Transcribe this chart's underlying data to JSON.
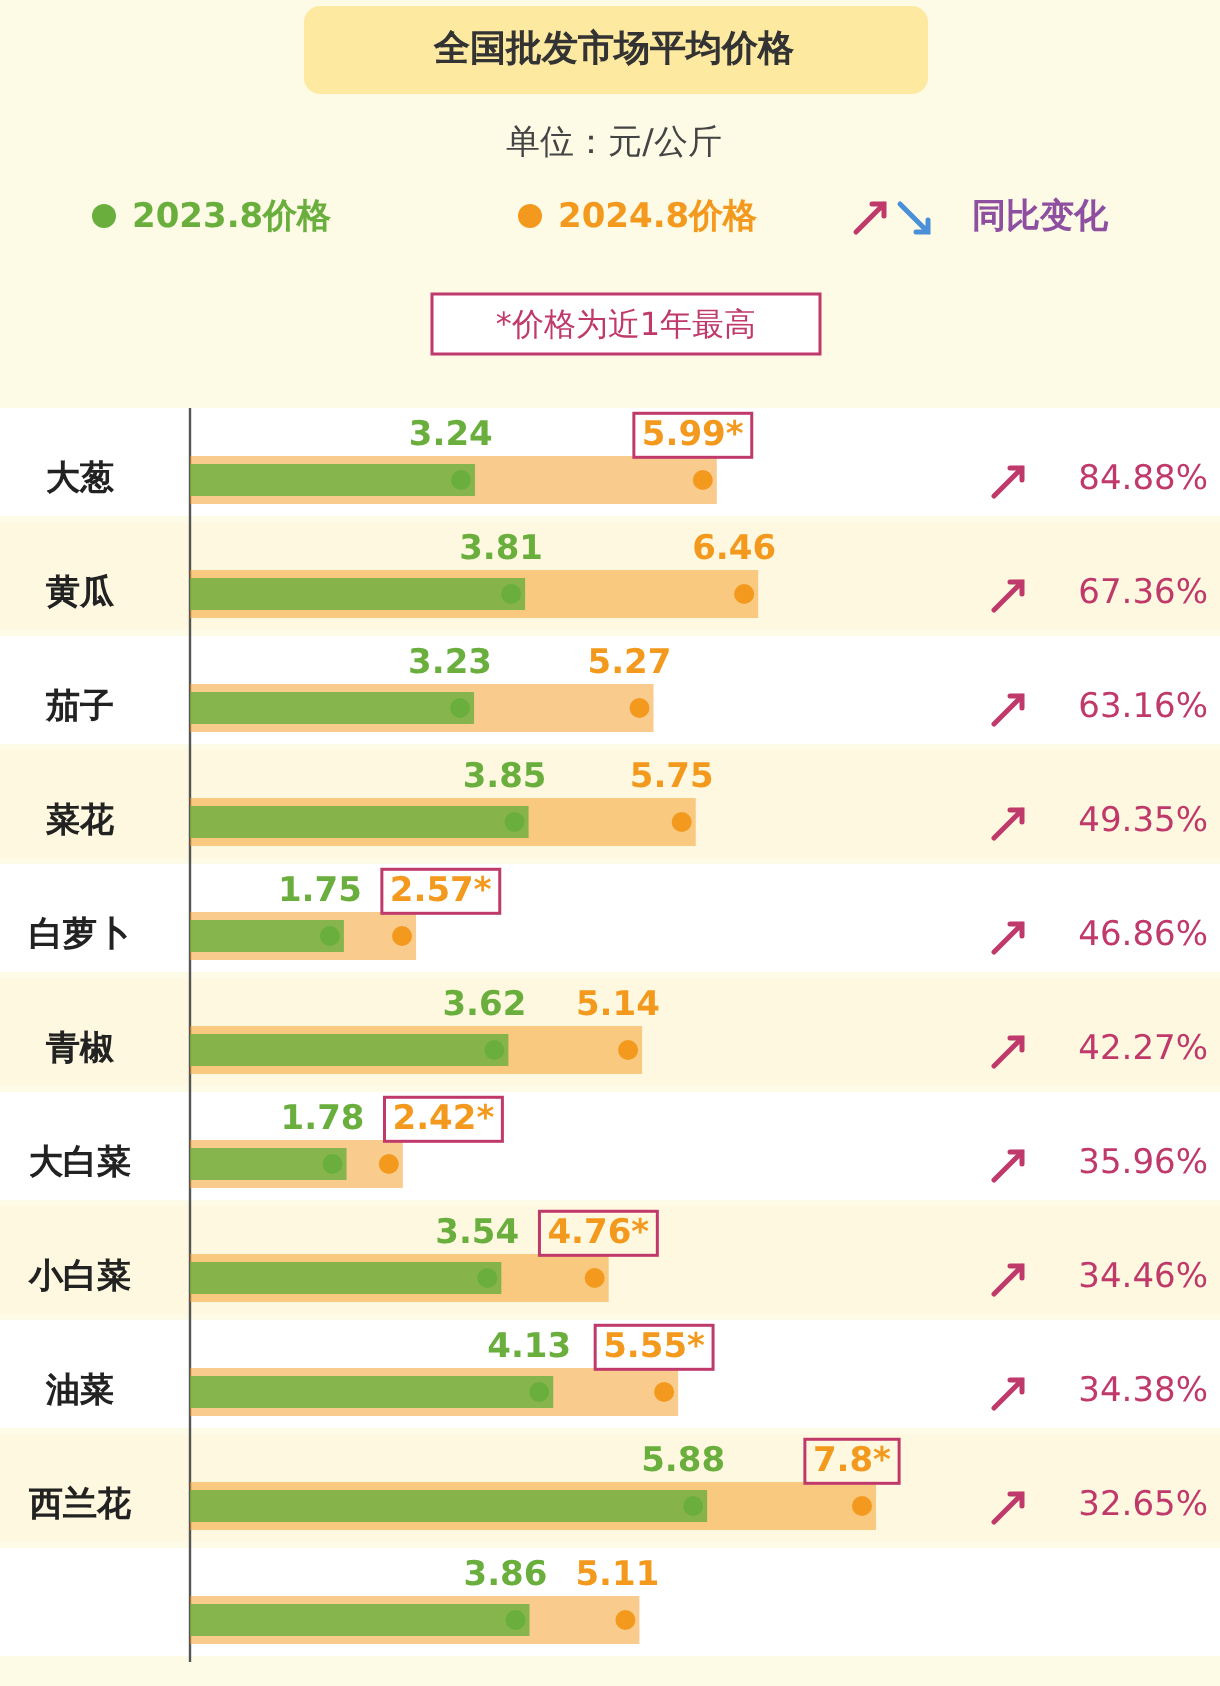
{
  "chart_data": {
    "type": "bar",
    "orientation": "horizontal",
    "title": "全国批发市场平均价格",
    "subtitle": "单位：元/公斤",
    "categories": [
      "大葱",
      "黄瓜",
      "茄子",
      "菜花",
      "白萝卜",
      "青椒",
      "大白菜",
      "小白菜",
      "油菜",
      "西兰花",
      null
    ],
    "series": [
      {
        "name": "2023.8价格",
        "color": "#6aaf3d",
        "values": [
          3.24,
          3.81,
          3.23,
          3.85,
          1.75,
          3.62,
          1.78,
          3.54,
          4.13,
          5.88,
          3.86
        ]
      },
      {
        "name": "2024.8价格",
        "color": "#f39a1e",
        "values": [
          5.99,
          6.46,
          5.27,
          5.75,
          2.57,
          5.14,
          2.42,
          4.76,
          5.55,
          7.8,
          5.11
        ],
        "value_labels": [
          "5.99*",
          "6.46",
          "5.27",
          "5.75",
          "2.57*",
          "5.14",
          "2.42*",
          "4.76*",
          "5.55*",
          "7.8*",
          "5.11"
        ]
      }
    ],
    "data_labels": true,
    "marker": "circle",
    "legend": "top",
    "annotations": [
      "同比变化",
      "*价格为近1年最高",
      "84.88%",
      "67.36%",
      "63.16%",
      "49.35%",
      "46.86%",
      "42.27%",
      "35.96%",
      "34.46%",
      "34.38%",
      "32.65%"
    ]
  }
}
